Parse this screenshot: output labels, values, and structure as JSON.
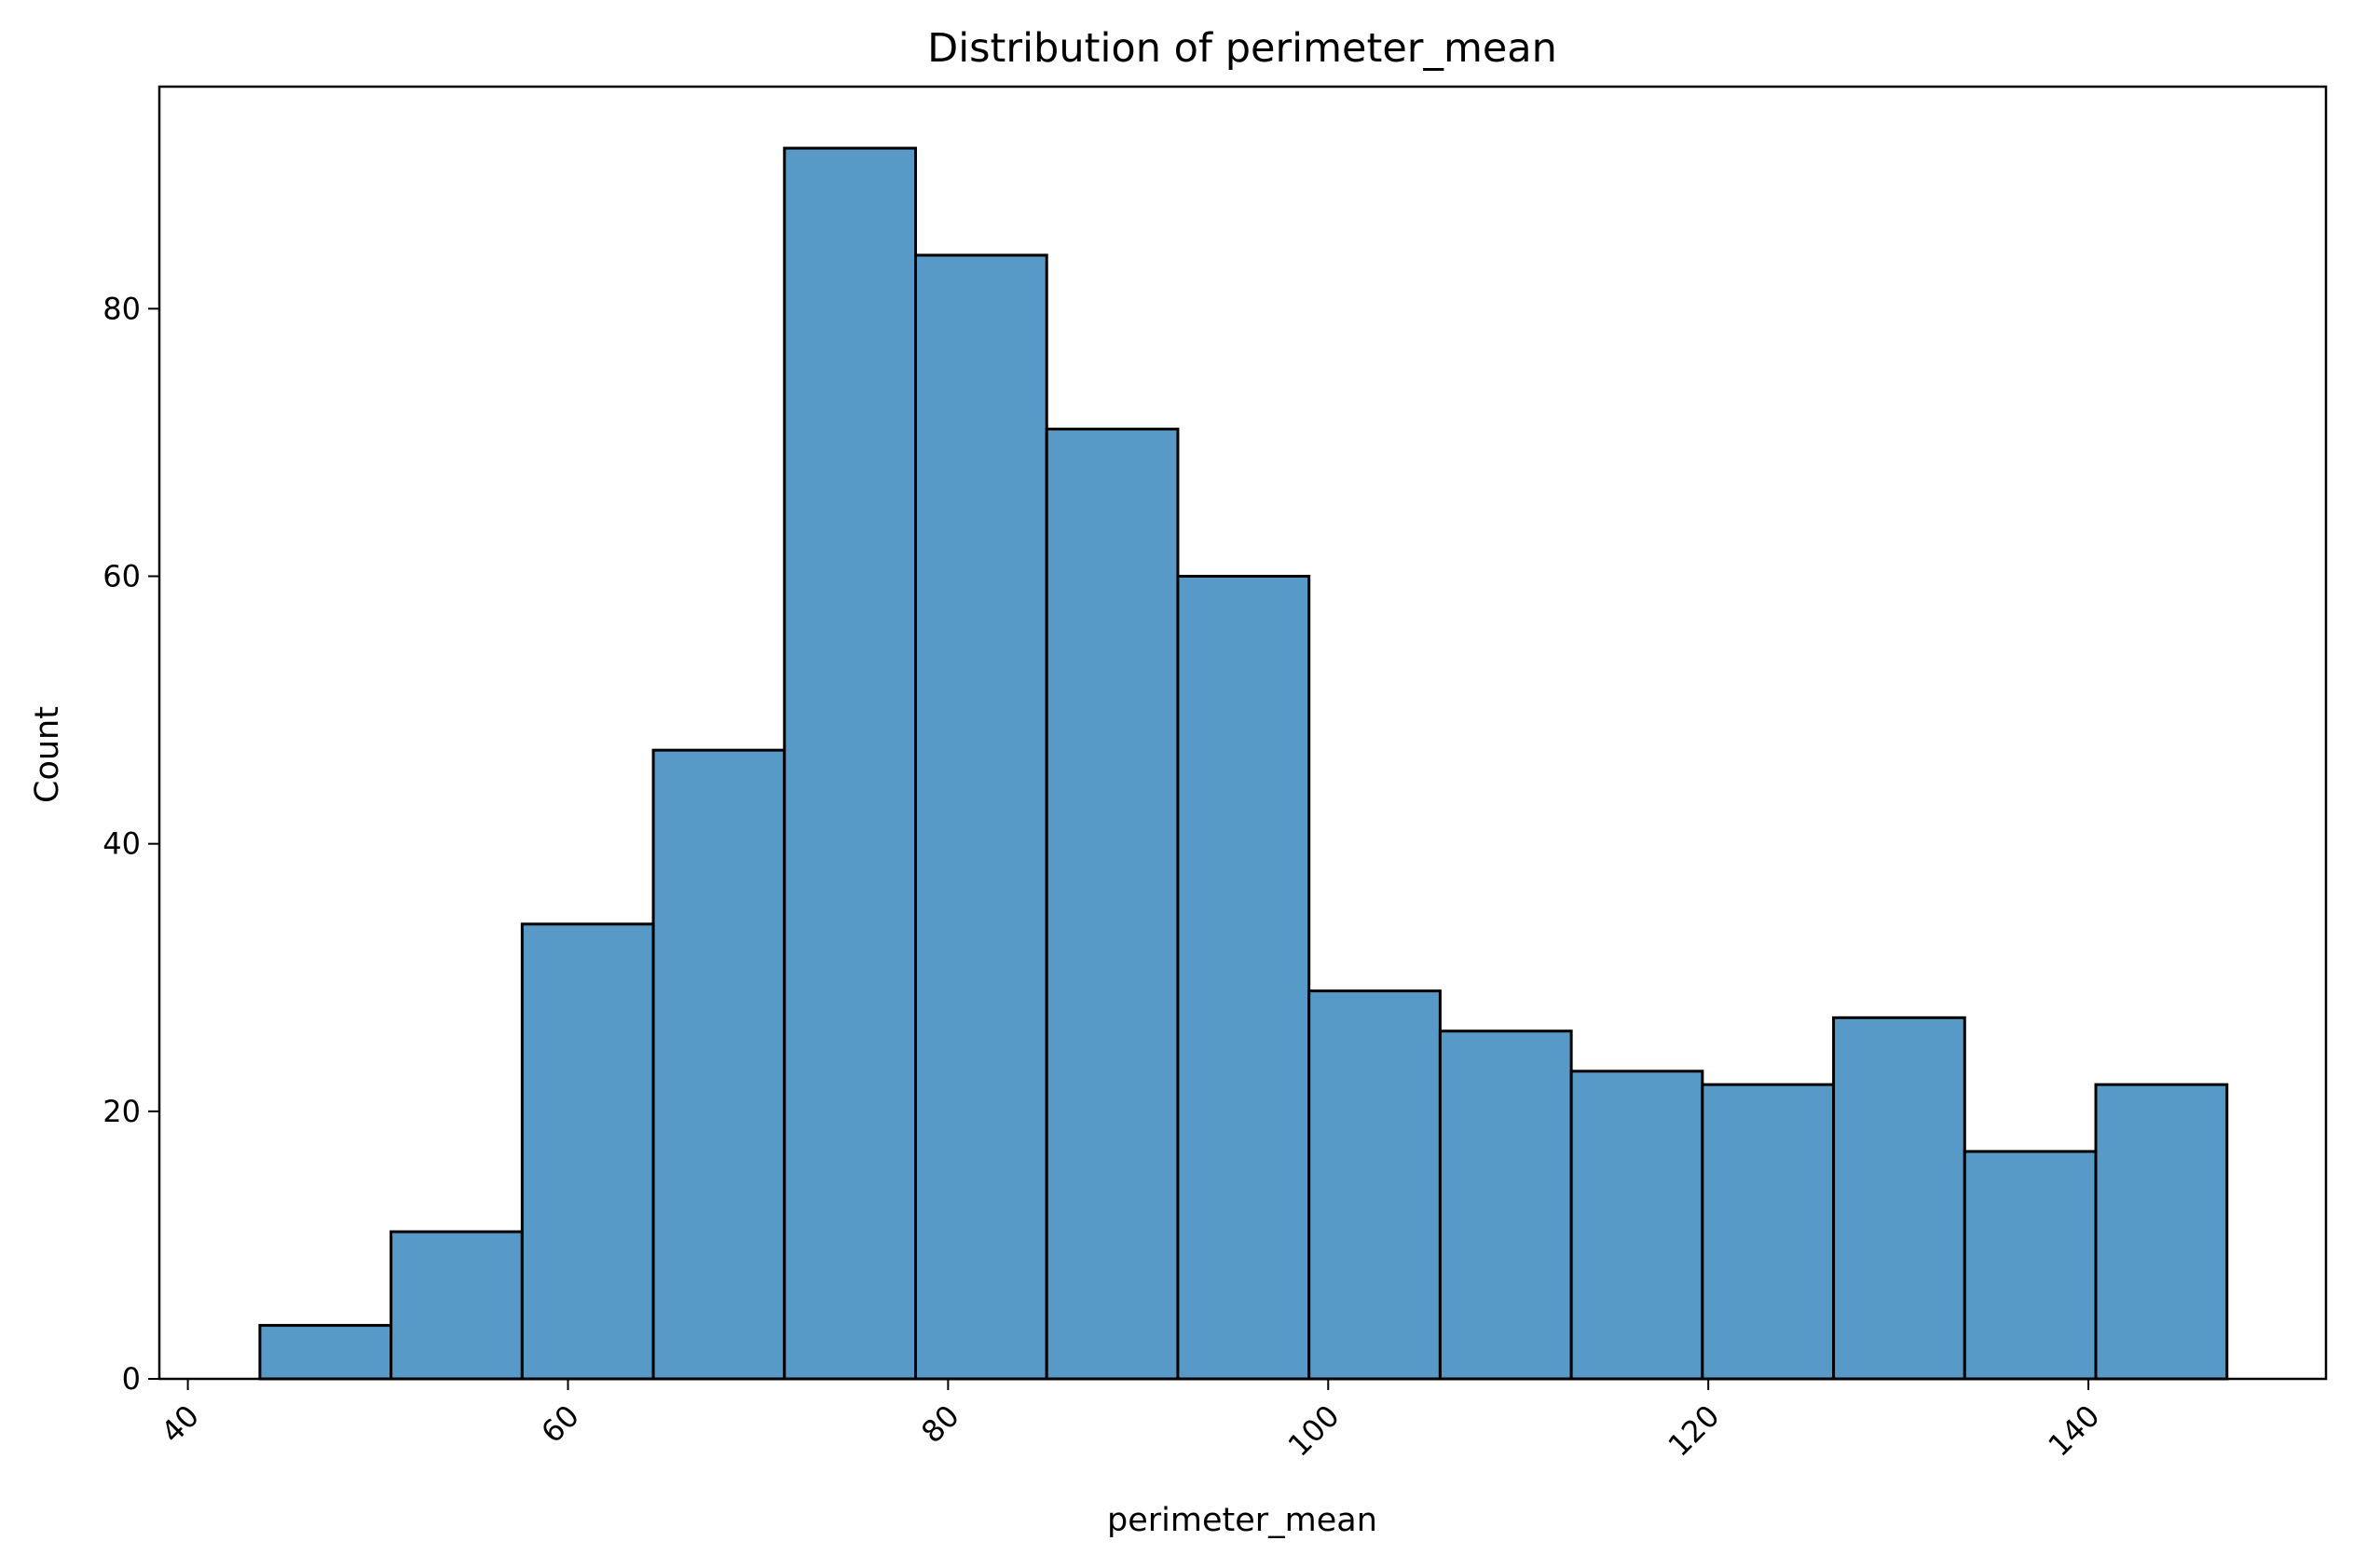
{
  "chart_data": {
    "type": "bar",
    "title": "Distribution of perimeter_mean",
    "xlabel": "perimeter_mean",
    "ylabel": "Count",
    "bar_color": "#5799c7",
    "edge_color": "#000000",
    "xlim": [
      38.5,
      152.5
    ],
    "ylim": [
      0,
      96.6
    ],
    "x_ticks": [
      40,
      60,
      80,
      100,
      120,
      140
    ],
    "y_ticks": [
      0,
      20,
      40,
      60,
      80
    ],
    "x_tick_rotation": -45,
    "grid": false,
    "bins": [
      {
        "x0": 43.79,
        "x1": 50.69,
        "count": 4
      },
      {
        "x0": 50.69,
        "x1": 57.59,
        "count": 11
      },
      {
        "x0": 57.59,
        "x1": 64.49,
        "count": 34
      },
      {
        "x0": 64.49,
        "x1": 71.39,
        "count": 47
      },
      {
        "x0": 71.39,
        "x1": 78.29,
        "count": 92
      },
      {
        "x0": 78.29,
        "x1": 85.19,
        "count": 84
      },
      {
        "x0": 85.19,
        "x1": 92.09,
        "count": 71
      },
      {
        "x0": 92.09,
        "x1": 98.99,
        "count": 60
      },
      {
        "x0": 98.99,
        "x1": 105.89,
        "count": 29
      },
      {
        "x0": 105.89,
        "x1": 112.79,
        "count": 26
      },
      {
        "x0": 112.79,
        "x1": 119.69,
        "count": 23
      },
      {
        "x0": 119.69,
        "x1": 126.59,
        "count": 22
      },
      {
        "x0": 126.59,
        "x1": 133.49,
        "count": 27
      },
      {
        "x0": 133.49,
        "x1": 140.39,
        "count": 17
      },
      {
        "x0": 140.39,
        "x1": 147.29,
        "count": 22
      }
    ]
  }
}
